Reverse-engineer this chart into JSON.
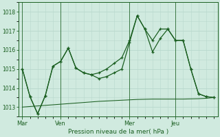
{
  "title": "Pression niveau de la mer( hPa )",
  "background_color": "#d0eadf",
  "plot_bg_color": "#d0eadf",
  "grid_color": "#b8d8cc",
  "line_color": "#1a5e20",
  "ylim": [
    1012.5,
    1018.5
  ],
  "yticks": [
    1013,
    1014,
    1015,
    1016,
    1017,
    1018
  ],
  "day_labels": [
    "Mar",
    "Ven",
    "Mer",
    "Jeu"
  ],
  "day_positions": [
    0,
    5,
    14,
    20
  ],
  "vline_positions": [
    0,
    5,
    14,
    20
  ],
  "series1_x": [
    0,
    1,
    2,
    3,
    4,
    5,
    6,
    7,
    8,
    9,
    10,
    11,
    12,
    13,
    14,
    15,
    16,
    17,
    18,
    19,
    20,
    21,
    22,
    23,
    24,
    25
  ],
  "series1": [
    1015.0,
    1013.55,
    1012.65,
    1013.6,
    1015.15,
    1015.4,
    1016.1,
    1015.05,
    1014.8,
    1014.7,
    1014.8,
    1015.0,
    1015.3,
    1015.6,
    1016.5,
    1017.8,
    1017.1,
    1016.5,
    1017.1,
    1017.1,
    1016.5,
    1016.5,
    1015.0,
    1013.7,
    1013.55,
    1013.5
  ],
  "series2_x": [
    0,
    1,
    2,
    3,
    4,
    5,
    6,
    7,
    8,
    9,
    10,
    11,
    12,
    13,
    14,
    15,
    16,
    17,
    18,
    19,
    20,
    21,
    22,
    23,
    24,
    25
  ],
  "series2": [
    1015.0,
    1013.55,
    1012.65,
    1013.6,
    1015.15,
    1015.4,
    1016.1,
    1015.05,
    1014.8,
    1014.7,
    1014.5,
    1014.6,
    1014.8,
    1015.0,
    1016.4,
    1017.8,
    1017.1,
    1015.9,
    1016.6,
    1017.1,
    1016.5,
    1016.5,
    1015.0,
    1013.7,
    1013.55,
    1013.5
  ],
  "series3_x": [
    0,
    1,
    2,
    3,
    4,
    5,
    6,
    7,
    8,
    9,
    10,
    11,
    12,
    13,
    14,
    15,
    16,
    17,
    18,
    19,
    20,
    21,
    22,
    23,
    24,
    25
  ],
  "series3": [
    1013.0,
    1013.03,
    1013.06,
    1013.09,
    1013.12,
    1013.15,
    1013.18,
    1013.21,
    1013.24,
    1013.27,
    1013.3,
    1013.32,
    1013.34,
    1013.36,
    1013.38,
    1013.4,
    1013.41,
    1013.42,
    1013.42,
    1013.42,
    1013.42,
    1013.42,
    1013.43,
    1013.44,
    1013.46,
    1013.5
  ],
  "n_points": 26,
  "figsize": [
    3.2,
    2.0
  ],
  "dpi": 100
}
